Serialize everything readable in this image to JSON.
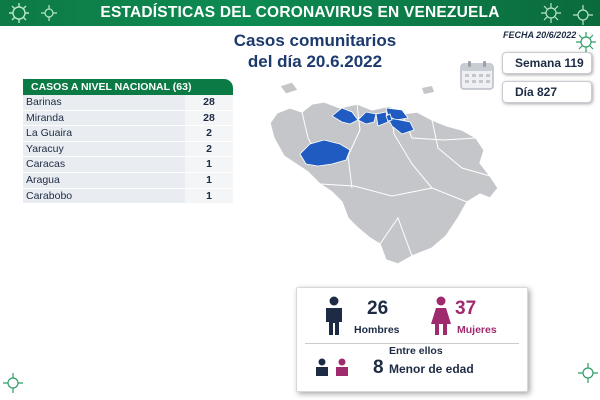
{
  "header": {
    "title": "ESTADÍSTICAS DEL CORONAVIRUS EN VENEZUELA"
  },
  "fecha": "FECHA 20/6/2022",
  "subtitle": {
    "line1": "Casos comunitarios",
    "line2": "del día 20.6.2022"
  },
  "semana": "Semana 119",
  "dia": "Día 827",
  "national": {
    "header": "CASOS A NIVEL NACIONAL (63)",
    "rows": [
      {
        "name": "Barinas",
        "value": "28"
      },
      {
        "name": "Miranda",
        "value": "28"
      },
      {
        "name": "La Guaira",
        "value": "2"
      },
      {
        "name": "Yaracuy",
        "value": "2"
      },
      {
        "name": "Caracas",
        "value": "1"
      },
      {
        "name": "Aragua",
        "value": "1"
      },
      {
        "name": "Carabobo",
        "value": "1"
      }
    ]
  },
  "stats": {
    "men_count": "26",
    "men_label": "Hombres",
    "women_count": "37",
    "women_label": "Mujeres",
    "minors_heading": "Entre ellos",
    "minors_count": "8",
    "minors_label": "Menor de edad"
  },
  "colors": {
    "header_green": "#0c7a45",
    "highlight_blue": "#1f5bc0",
    "map_gray": "#c4c6c9",
    "men": "#1d2b44",
    "women": "#a02a6e"
  },
  "map": {
    "highlighted_states": [
      "Barinas",
      "Miranda",
      "La Guaira",
      "Yaracuy",
      "Caracas",
      "Aragua",
      "Carabobo"
    ]
  }
}
